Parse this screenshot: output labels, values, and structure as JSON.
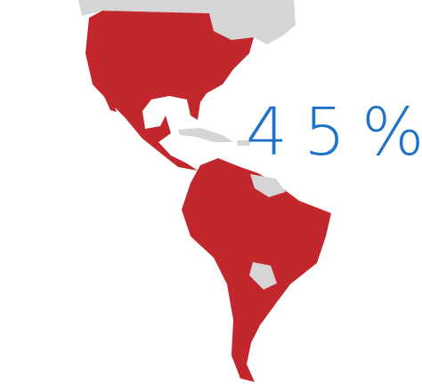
{
  "annotation": "45%"
}
